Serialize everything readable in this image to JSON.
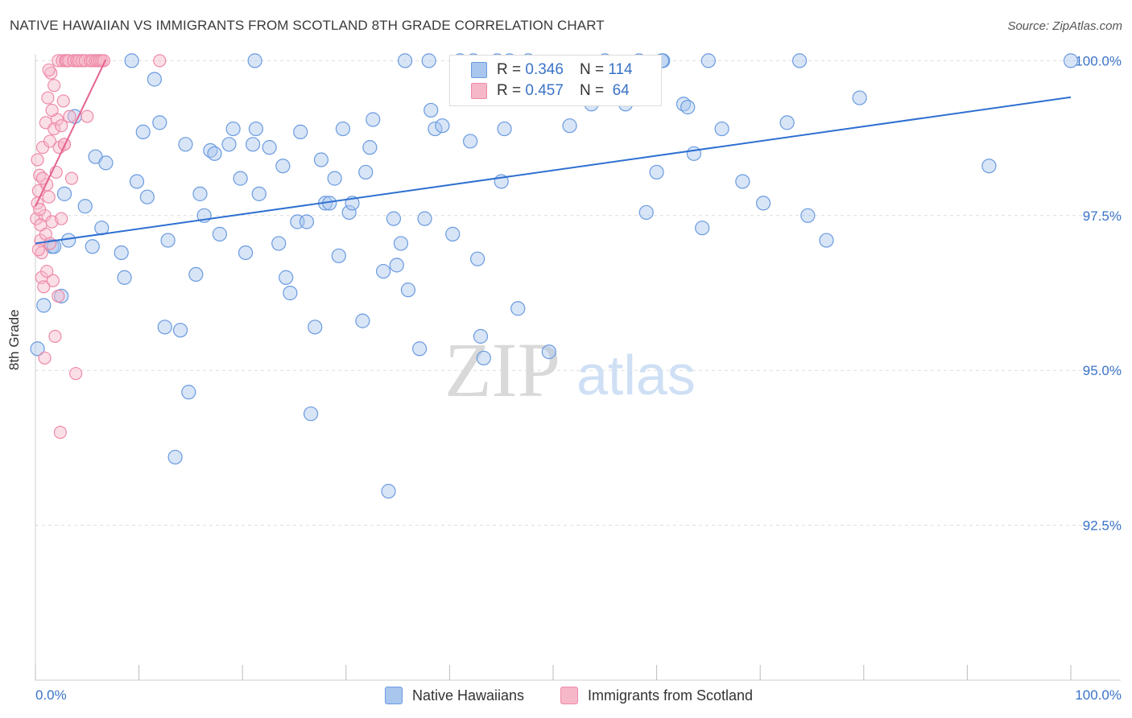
{
  "header": {
    "title": "NATIVE HAWAIIAN VS IMMIGRANTS FROM SCOTLAND 8TH GRADE CORRELATION CHART",
    "source": "Source: ZipAtlas.com"
  },
  "watermark": {
    "zip": "ZIP",
    "atlas": "atlas"
  },
  "colors": {
    "blue_fill": "#a9c6ee",
    "blue_stroke": "#6a9be0",
    "blue_line": "#2e6fd1",
    "pink_fill": "#f6b7c9",
    "pink_stroke": "#ee8aa8",
    "pink_line": "#e4628f",
    "tick_label": "#3a73c8",
    "grid": "#dddddd"
  },
  "legend": {
    "rows": [
      {
        "r_label": "R =",
        "r_value": "0.346",
        "n_label": "N =",
        "n_value": "114",
        "color": "#a9c6ee"
      },
      {
        "r_label": "R =",
        "r_value": "0.457",
        "n_label": "N =",
        "n_value": "64",
        "color": "#f6b7c9"
      }
    ],
    "series": [
      "Native Hawaiians",
      "Immigrants from Scotland"
    ]
  },
  "chart_data": {
    "type": "scatter",
    "title": "NATIVE HAWAIIAN VS IMMIGRANTS FROM SCOTLAND 8TH GRADE CORRELATION CHART",
    "xlabel": "",
    "ylabel": "8th Grade",
    "xlim": [
      0,
      100
    ],
    "ylim": [
      90.0,
      100.2
    ],
    "x_tick_labels": [
      "0.0%",
      "100.0%"
    ],
    "y_ticks": [
      92.5,
      95.0,
      97.5,
      100.0
    ],
    "y_tick_labels": [
      "92.5%",
      "95.0%",
      "97.5%",
      "100.0%"
    ],
    "grid": true,
    "legend_position": "top-center",
    "series": [
      {
        "name": "Native Hawaiians",
        "color": "#a9c6ee",
        "trend": {
          "x": [
            0,
            100
          ],
          "y": [
            97.05,
            99.41
          ]
        },
        "points": [
          [
            0.2,
            95.35
          ],
          [
            0.8,
            96.05
          ],
          [
            1.6,
            97.0
          ],
          [
            2.5,
            96.2
          ],
          [
            3.2,
            97.1
          ],
          [
            3.8,
            99.1
          ],
          [
            2.8,
            97.85
          ],
          [
            4.8,
            97.65
          ],
          [
            5.5,
            97.0
          ],
          [
            5.8,
            98.45
          ],
          [
            6.4,
            97.3
          ],
          [
            6.8,
            98.35
          ],
          [
            8.3,
            96.9
          ],
          [
            8.6,
            96.5
          ],
          [
            9.3,
            100.0
          ],
          [
            9.8,
            98.05
          ],
          [
            10.4,
            98.85
          ],
          [
            10.8,
            97.8
          ],
          [
            11.5,
            99.7
          ],
          [
            12.0,
            99.0
          ],
          [
            12.5,
            95.7
          ],
          [
            12.8,
            97.1
          ],
          [
            13.5,
            93.6
          ],
          [
            14.0,
            95.65
          ],
          [
            14.5,
            98.65
          ],
          [
            14.8,
            94.65
          ],
          [
            15.5,
            96.55
          ],
          [
            15.9,
            97.85
          ],
          [
            16.3,
            97.5
          ],
          [
            16.9,
            98.55
          ],
          [
            17.3,
            98.5
          ],
          [
            17.8,
            97.2
          ],
          [
            18.7,
            98.65
          ],
          [
            19.1,
            98.9
          ],
          [
            19.8,
            98.1
          ],
          [
            20.3,
            96.9
          ],
          [
            21.0,
            98.65
          ],
          [
            21.3,
            98.9
          ],
          [
            21.6,
            97.85
          ],
          [
            22.6,
            98.6
          ],
          [
            23.5,
            97.05
          ],
          [
            23.9,
            98.3
          ],
          [
            24.2,
            96.5
          ],
          [
            24.6,
            96.25
          ],
          [
            25.3,
            97.4
          ],
          [
            25.6,
            98.85
          ],
          [
            26.2,
            97.4
          ],
          [
            26.6,
            94.3
          ],
          [
            27.0,
            95.7
          ],
          [
            27.6,
            98.4
          ],
          [
            28.0,
            97.7
          ],
          [
            28.4,
            97.7
          ],
          [
            28.9,
            98.1
          ],
          [
            29.3,
            96.85
          ],
          [
            29.7,
            98.9
          ],
          [
            30.3,
            97.55
          ],
          [
            30.6,
            97.7
          ],
          [
            31.6,
            95.8
          ],
          [
            31.9,
            98.2
          ],
          [
            32.3,
            98.6
          ],
          [
            32.6,
            99.05
          ],
          [
            33.6,
            96.6
          ],
          [
            34.1,
            93.05
          ],
          [
            34.6,
            97.45
          ],
          [
            34.9,
            96.7
          ],
          [
            35.3,
            97.05
          ],
          [
            36.0,
            96.3
          ],
          [
            37.1,
            95.35
          ],
          [
            37.6,
            97.45
          ],
          [
            38.2,
            99.2
          ],
          [
            38.6,
            98.9
          ],
          [
            39.3,
            98.95
          ],
          [
            40.3,
            97.2
          ],
          [
            41.0,
            100.0
          ],
          [
            42.0,
            98.7
          ],
          [
            42.3,
            100.0
          ],
          [
            42.7,
            96.8
          ],
          [
            43.0,
            95.55
          ],
          [
            43.3,
            95.2
          ],
          [
            45.0,
            98.05
          ],
          [
            45.3,
            98.9
          ],
          [
            45.8,
            100.0
          ],
          [
            46.6,
            96.0
          ],
          [
            47.6,
            100.0
          ],
          [
            49.6,
            95.3
          ],
          [
            51.6,
            98.95
          ],
          [
            53.7,
            99.3
          ],
          [
            55.0,
            100.0
          ],
          [
            57.0,
            99.3
          ],
          [
            59.0,
            97.55
          ],
          [
            60.0,
            98.2
          ],
          [
            60.6,
            100.0
          ],
          [
            62.6,
            99.3
          ],
          [
            63.0,
            99.25
          ],
          [
            63.6,
            98.5
          ],
          [
            64.4,
            97.3
          ],
          [
            65.0,
            100.0
          ],
          [
            66.3,
            98.9
          ],
          [
            68.3,
            98.05
          ],
          [
            70.3,
            97.7
          ],
          [
            72.6,
            99.0
          ],
          [
            73.8,
            100.0
          ],
          [
            74.6,
            97.5
          ],
          [
            76.4,
            97.1
          ],
          [
            79.6,
            99.4
          ],
          [
            92.1,
            98.3
          ],
          [
            100.0,
            100.0
          ],
          [
            60.5,
            100.0
          ],
          [
            58.3,
            100.0
          ],
          [
            38.0,
            100.0
          ],
          [
            44.6,
            100.0
          ],
          [
            35.7,
            100.0
          ],
          [
            1.8,
            97.0
          ],
          [
            21.2,
            100.0
          ]
        ]
      },
      {
        "name": "Immigrants from Scotland",
        "color": "#f6b7c9",
        "trend": {
          "x": [
            0,
            6.8
          ],
          "y": [
            97.65,
            100.02
          ]
        },
        "points": [
          [
            0.1,
            97.45
          ],
          [
            0.2,
            97.7
          ],
          [
            0.3,
            97.9
          ],
          [
            0.4,
            98.15
          ],
          [
            0.5,
            97.1
          ],
          [
            0.6,
            96.9
          ],
          [
            0.6,
            96.5
          ],
          [
            0.7,
            98.6
          ],
          [
            0.8,
            96.35
          ],
          [
            0.9,
            97.5
          ],
          [
            1.0,
            99.0
          ],
          [
            1.0,
            97.2
          ],
          [
            1.1,
            98.0
          ],
          [
            1.2,
            99.4
          ],
          [
            1.3,
            97.8
          ],
          [
            1.4,
            98.7
          ],
          [
            1.5,
            99.8
          ],
          [
            1.6,
            97.4
          ],
          [
            1.7,
            96.45
          ],
          [
            1.8,
            99.6
          ],
          [
            1.9,
            95.55
          ],
          [
            2.0,
            98.2
          ],
          [
            2.1,
            99.05
          ],
          [
            2.2,
            100.0
          ],
          [
            2.3,
            98.6
          ],
          [
            2.4,
            94.0
          ],
          [
            2.5,
            97.45
          ],
          [
            2.6,
            100.0
          ],
          [
            2.7,
            99.35
          ],
          [
            2.8,
            98.65
          ],
          [
            2.9,
            100.0
          ],
          [
            3.0,
            100.0
          ],
          [
            3.2,
            100.0
          ],
          [
            3.3,
            99.1
          ],
          [
            3.5,
            98.1
          ],
          [
            3.7,
            100.0
          ],
          [
            3.9,
            94.95
          ],
          [
            4.0,
            100.0
          ],
          [
            4.2,
            100.0
          ],
          [
            4.5,
            100.0
          ],
          [
            4.8,
            100.0
          ],
          [
            5.0,
            99.1
          ],
          [
            5.3,
            100.0
          ],
          [
            5.5,
            100.0
          ],
          [
            5.8,
            100.0
          ],
          [
            6.0,
            100.0
          ],
          [
            6.2,
            100.0
          ],
          [
            6.4,
            100.0
          ],
          [
            6.6,
            100.0
          ],
          [
            12.0,
            100.0
          ],
          [
            0.3,
            96.95
          ],
          [
            0.5,
            97.35
          ],
          [
            0.4,
            97.6
          ],
          [
            0.7,
            98.1
          ],
          [
            1.1,
            96.6
          ],
          [
            1.3,
            99.85
          ],
          [
            1.6,
            99.2
          ],
          [
            0.9,
            95.2
          ],
          [
            2.2,
            96.2
          ],
          [
            0.2,
            98.4
          ],
          [
            1.4,
            97.05
          ],
          [
            1.8,
            98.9
          ],
          [
            2.8,
            98.65
          ],
          [
            2.5,
            98.95
          ]
        ]
      }
    ]
  }
}
